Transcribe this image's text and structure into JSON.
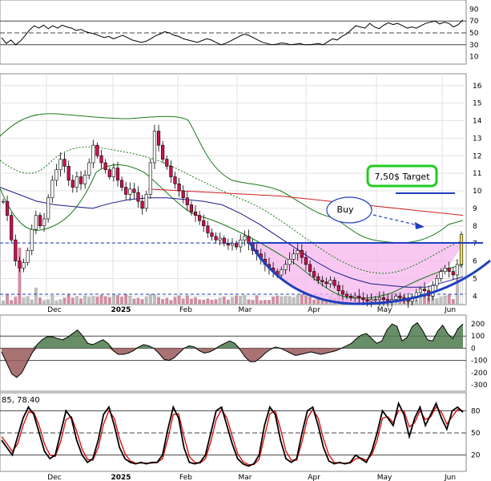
{
  "chart_data": {
    "type": "line",
    "x_labels": [
      {
        "label": "Dec",
        "bold": false
      },
      {
        "label": "2025",
        "bold": true
      },
      {
        "label": "Feb",
        "bold": false
      },
      {
        "label": "Mar",
        "bold": false
      },
      {
        "label": "Apr",
        "bold": false
      },
      {
        "label": "May",
        "bold": false
      },
      {
        "label": "Jun",
        "bold": false
      }
    ],
    "rsi_panel": {
      "type": "line",
      "ticks": [
        90,
        70,
        50,
        30,
        10
      ],
      "ylim": [
        0,
        100
      ],
      "guide_levels": [
        70,
        50,
        30
      ],
      "series": [
        {
          "color": "#000000",
          "values": [
            42,
            32,
            38,
            30,
            36,
            45,
            55,
            62,
            58,
            63,
            57,
            62,
            58,
            63,
            60,
            58,
            54,
            56,
            52,
            50,
            48,
            45,
            42,
            44,
            40,
            43,
            46,
            42,
            38,
            36,
            34,
            36,
            40,
            45,
            48,
            52,
            50,
            46,
            44,
            40,
            38,
            36,
            34,
            37,
            40,
            38,
            34,
            30,
            32,
            36,
            40,
            44,
            48,
            46,
            42,
            38,
            34,
            32,
            30,
            31,
            33,
            32,
            30,
            31,
            32,
            30,
            30,
            31,
            32,
            30,
            35,
            40,
            38,
            44,
            48,
            55,
            62,
            60,
            58,
            66,
            60,
            57,
            63,
            67,
            64,
            66,
            62,
            58,
            60,
            58,
            62,
            66,
            68,
            70,
            65,
            68,
            66,
            60,
            64,
            72
          ]
        }
      ]
    },
    "price_panel": {
      "type": "candlestick",
      "ticks": [
        16,
        15,
        14,
        13,
        12,
        11,
        10,
        9,
        8,
        7,
        6,
        5,
        4
      ],
      "ylim": [
        3.6,
        16.4
      ],
      "close": [
        9.4,
        8.6,
        7.2,
        6.0,
        5.6,
        5.9,
        6.6,
        7.8,
        8.6,
        8.0,
        8.4,
        9.6,
        10.6,
        11.2,
        11.8,
        11.4,
        10.6,
        10.2,
        10.8,
        10.4,
        10.9,
        11.6,
        12.6,
        12.0,
        11.6,
        11.2,
        10.8,
        11.3,
        10.6,
        10.2,
        9.8,
        10.1,
        9.9,
        9.4,
        9.0,
        9.8,
        11.6,
        13.4,
        12.6,
        11.8,
        11.4,
        10.8,
        10.4,
        10.0,
        9.6,
        9.2,
        8.8,
        8.6,
        8.3,
        8.0,
        7.6,
        7.4,
        7.2,
        7.3,
        7.0,
        6.9,
        7.0,
        6.8,
        7.2,
        7.4,
        7.0,
        6.6,
        6.4,
        6.1,
        5.8,
        5.6,
        5.4,
        5.2,
        5.5,
        5.8,
        6.1,
        6.4,
        6.6,
        6.2,
        5.8,
        5.4,
        5.1,
        4.9,
        4.8,
        4.7,
        4.9,
        4.6,
        4.3,
        4.1,
        4.0,
        3.9,
        4.0,
        3.9,
        3.8,
        3.7,
        3.8,
        3.8,
        3.9,
        3.8,
        3.7,
        3.8,
        4.0,
        3.9,
        3.8,
        3.7,
        3.9,
        4.2,
        4.4,
        4.3,
        4.0,
        4.6,
        5.0,
        5.4,
        5.6,
        5.4,
        5.2,
        5.8,
        7.5
      ],
      "sma_red": [
        10.1,
        10.05,
        10.0,
        9.95,
        9.9,
        9.85,
        9.8,
        9.75,
        9.7,
        9.6,
        9.5,
        9.4,
        9.3,
        9.2,
        9.1,
        9.0,
        8.9,
        8.8,
        8.7,
        8.6
      ],
      "sma_blue": [
        10.2,
        9.8,
        9.4,
        9.2,
        9.1,
        9.0,
        9.3,
        9.5,
        9.6,
        9.6,
        9.5,
        9.4,
        9.2,
        8.7,
        8.1,
        7.4,
        6.7,
        6.0,
        5.4,
        5.0,
        4.7,
        4.6,
        4.5,
        4.5,
        4.8,
        5.1
      ],
      "support_level": 5.2,
      "target_level": 7.5,
      "volume_level": 3.74,
      "annotations": [
        {
          "text": "7,50$ Target",
          "kind": "boxed-label"
        },
        {
          "text": "Buy",
          "kind": "oval-label"
        }
      ]
    },
    "macd_panel": {
      "type": "area",
      "ticks": [
        200,
        100,
        0,
        -100,
        -200,
        -300
      ],
      "ylim": [
        -340,
        240
      ],
      "values": [
        -30,
        -120,
        -210,
        -240,
        -200,
        -120,
        -40,
        30,
        70,
        95,
        95,
        80,
        70,
        90,
        120,
        150,
        100,
        40,
        30,
        50,
        70,
        40,
        -20,
        -50,
        -50,
        -40,
        -20,
        10,
        30,
        20,
        0,
        -40,
        -90,
        -100,
        -80,
        -40,
        0,
        20,
        10,
        -20,
        -40,
        -30,
        -10,
        20,
        40,
        60,
        40,
        -10,
        -70,
        -110,
        -110,
        -80,
        -40,
        -10,
        10,
        0,
        -20,
        -40,
        -60,
        -50,
        -40,
        -30,
        -40,
        -50,
        -40,
        -30,
        -20,
        0,
        20,
        40,
        80,
        110,
        120,
        80,
        40,
        60,
        150,
        200,
        180,
        60,
        90,
        180,
        210,
        150,
        70,
        60,
        140,
        190,
        120,
        80,
        160,
        200
      ]
    },
    "stoch_panel": {
      "type": "line",
      "header": "85, 78.40",
      "ticks": [
        80,
        50,
        20
      ],
      "ylim": [
        0,
        100
      ],
      "guide_levels": [
        80,
        50,
        20
      ],
      "series": [
        {
          "color": "#000000",
          "values": [
            40,
            30,
            20,
            45,
            70,
            85,
            75,
            50,
            25,
            15,
            20,
            50,
            80,
            70,
            40,
            20,
            10,
            15,
            40,
            75,
            85,
            60,
            30,
            15,
            10,
            8,
            10,
            8,
            10,
            10,
            20,
            55,
            85,
            70,
            30,
            10,
            8,
            10,
            20,
            50,
            80,
            85,
            60,
            35,
            15,
            8,
            5,
            8,
            20,
            60,
            85,
            75,
            40,
            15,
            10,
            15,
            50,
            80,
            85,
            60,
            30,
            12,
            8,
            10,
            8,
            10,
            20,
            15,
            10,
            25,
            50,
            80,
            70,
            60,
            90,
            75,
            45,
            70,
            85,
            60,
            75,
            90,
            70,
            55,
            80,
            85,
            78
          ]
        },
        {
          "color": "#e00000",
          "values": [
            45,
            35,
            25,
            35,
            60,
            78,
            78,
            60,
            35,
            20,
            18,
            38,
            68,
            72,
            52,
            28,
            14,
            13,
            30,
            62,
            80,
            70,
            42,
            22,
            12,
            9,
            9,
            9,
            9,
            10,
            15,
            42,
            75,
            76,
            45,
            18,
            10,
            9,
            15,
            38,
            68,
            82,
            70,
            45,
            22,
            11,
            7,
            7,
            14,
            45,
            76,
            80,
            55,
            25,
            13,
            13,
            38,
            70,
            82,
            70,
            42,
            20,
            10,
            9,
            9,
            9,
            15,
            16,
            13,
            20,
            40,
            70,
            72,
            64,
            80,
            80,
            58,
            64,
            80,
            68,
            72,
            85,
            78,
            62,
            72,
            82,
            80
          ]
        }
      ]
    }
  }
}
